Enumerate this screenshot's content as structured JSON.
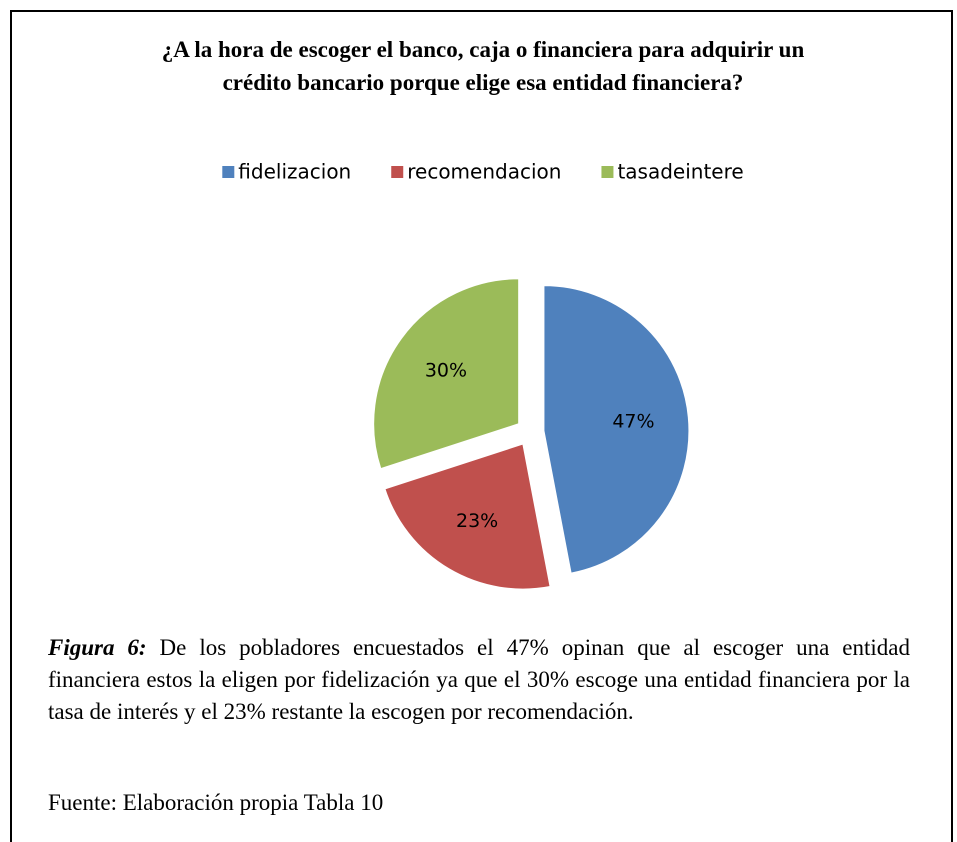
{
  "chart_data": {
    "type": "pie",
    "title": "¿A  la hora de escoger el banco, caja o financiera para adquirir un crédito bancario porque elige esa entidad financiera?",
    "categories": [
      "fidelizacion",
      "recomendacion",
      "tasadeintere"
    ],
    "values": [
      47,
      23,
      30
    ],
    "value_labels": [
      "47%",
      "23%",
      "30%"
    ],
    "colors": [
      "#4f81bd",
      "#c0504d",
      "#9bbb59"
    ],
    "legend": "top",
    "exploded": true
  },
  "caption": {
    "label": "Figura 6:",
    "text": "De los pobladores encuestados el 47% opinan que al escoger una entidad financiera estos la eligen por fidelización ya que el 30% escoge una entidad financiera por la tasa de interés y el 23% restante la escogen por recomendación."
  },
  "source": "Fuente: Elaboración propia Tabla 10"
}
